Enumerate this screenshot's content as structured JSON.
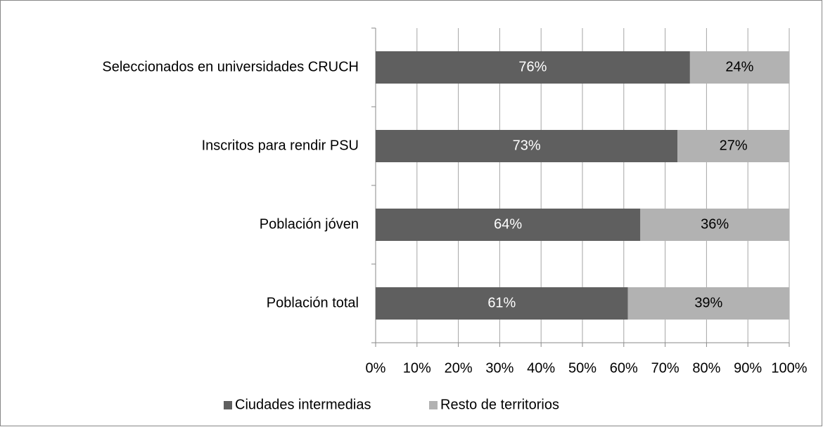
{
  "chart_data": {
    "type": "stacked_bar_horizontal",
    "categories": [
      "Seleccionados en universidades CRUCH",
      "Inscritos para rendir PSU",
      "Población jóven",
      "Población total"
    ],
    "series": [
      {
        "name": "Ciudades intermedias",
        "color": "#5f5f5f",
        "label_color": "#ffffff",
        "values": [
          76,
          73,
          64,
          61
        ],
        "value_labels": [
          "76%",
          "73%",
          "64%",
          "61%"
        ]
      },
      {
        "name": "Resto de territorios",
        "color": "#b2b2b2",
        "label_color": "#000000",
        "values": [
          24,
          27,
          36,
          39
        ],
        "value_labels": [
          "24%",
          "27%",
          "36%",
          "39%"
        ]
      }
    ],
    "xlim": [
      0,
      100
    ],
    "xticks": [
      {
        "value": 0,
        "label": "0%"
      },
      {
        "value": 10,
        "label": "10%"
      },
      {
        "value": 20,
        "label": "20%"
      },
      {
        "value": 30,
        "label": "30%"
      },
      {
        "value": 40,
        "label": "40%"
      },
      {
        "value": 50,
        "label": "50%"
      },
      {
        "value": 60,
        "label": "60%"
      },
      {
        "value": 70,
        "label": "70%"
      },
      {
        "value": 80,
        "label": "80%"
      },
      {
        "value": 90,
        "label": "90%"
      },
      {
        "value": 100,
        "label": "100%"
      }
    ],
    "grid": true,
    "legend": "bottom"
  }
}
